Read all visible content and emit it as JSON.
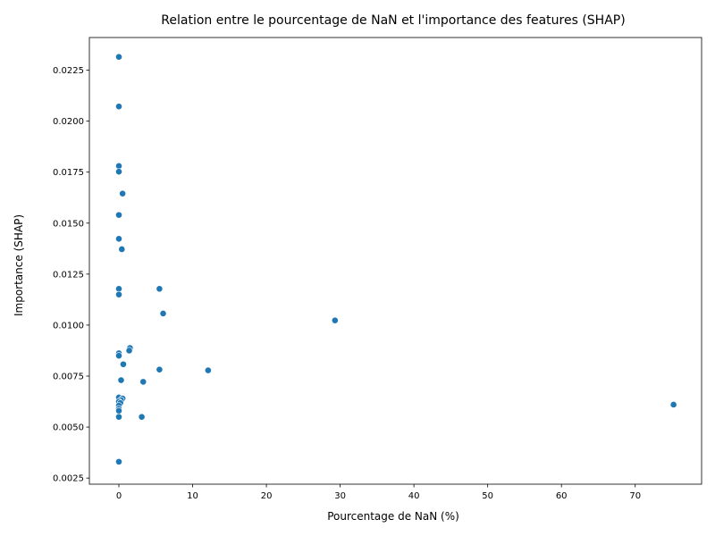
{
  "chart_data": {
    "type": "scatter",
    "title": "Relation entre le pourcentage de NaN et l'importance des features (SHAP)",
    "xlabel": "Pourcentage de NaN (%)",
    "ylabel": "Importance (SHAP)",
    "xlim": [
      -4,
      79
    ],
    "ylim": [
      0.0022,
      0.0241
    ],
    "xticks": [
      0,
      10,
      20,
      30,
      40,
      50,
      60,
      70
    ],
    "xtick_labels": [
      "0",
      "10",
      "20",
      "30",
      "40",
      "50",
      "60",
      "70"
    ],
    "yticks": [
      0.0025,
      0.005,
      0.0075,
      0.01,
      0.0125,
      0.015,
      0.0175,
      0.02,
      0.0225
    ],
    "ytick_labels": [
      "0.0025",
      "0.0050",
      "0.0075",
      "0.0100",
      "0.0125",
      "0.0150",
      "0.0175",
      "0.0200",
      "0.0225"
    ],
    "grid": false,
    "marker_color": "#1f77b4",
    "points": [
      {
        "x": 0.0,
        "y": 0.02315
      },
      {
        "x": 0.0,
        "y": 0.02072
      },
      {
        "x": 0.0,
        "y": 0.0178
      },
      {
        "x": 0.0,
        "y": 0.01752
      },
      {
        "x": 0.5,
        "y": 0.01645
      },
      {
        "x": 0.0,
        "y": 0.0154
      },
      {
        "x": 0.0,
        "y": 0.01423
      },
      {
        "x": 0.4,
        "y": 0.01372
      },
      {
        "x": 0.0,
        "y": 0.01178
      },
      {
        "x": 5.5,
        "y": 0.01178
      },
      {
        "x": 0.0,
        "y": 0.0115
      },
      {
        "x": 6.0,
        "y": 0.01057
      },
      {
        "x": 29.3,
        "y": 0.01023
      },
      {
        "x": 1.5,
        "y": 0.00888
      },
      {
        "x": 1.4,
        "y": 0.00875
      },
      {
        "x": 0.0,
        "y": 0.00862
      },
      {
        "x": 0.0,
        "y": 0.0085
      },
      {
        "x": 0.6,
        "y": 0.00808
      },
      {
        "x": 5.5,
        "y": 0.00782
      },
      {
        "x": 12.1,
        "y": 0.00778
      },
      {
        "x": 0.3,
        "y": 0.0073
      },
      {
        "x": 3.3,
        "y": 0.00722
      },
      {
        "x": 0.0,
        "y": 0.00645
      },
      {
        "x": 0.5,
        "y": 0.0064
      },
      {
        "x": 0.3,
        "y": 0.00632
      },
      {
        "x": 0.0,
        "y": 0.00625
      },
      {
        "x": 0.2,
        "y": 0.00618
      },
      {
        "x": 75.2,
        "y": 0.0061
      },
      {
        "x": 0.0,
        "y": 0.00605
      },
      {
        "x": 0.0,
        "y": 0.0059
      },
      {
        "x": 0.0,
        "y": 0.0058
      },
      {
        "x": 0.0,
        "y": 0.0055
      },
      {
        "x": 3.1,
        "y": 0.0055
      },
      {
        "x": 0.0,
        "y": 0.0033
      }
    ]
  }
}
